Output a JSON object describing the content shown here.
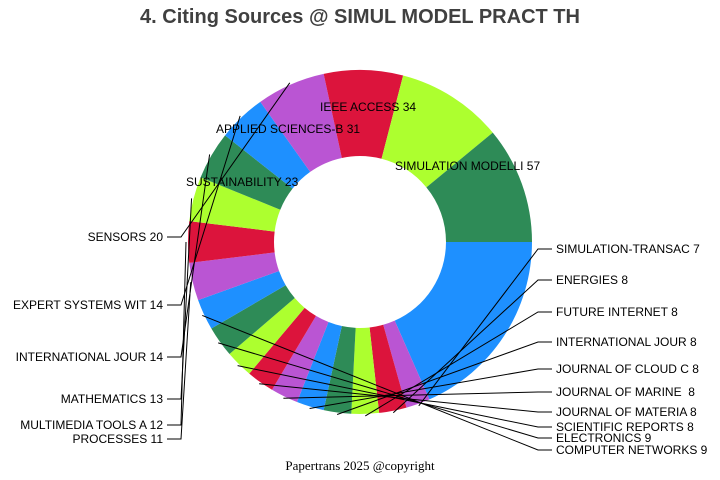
{
  "title": "4. Citing Sources @ SIMUL MODEL PRACT TH",
  "footer": "Papertrans 2025 @copyright",
  "chart_data": {
    "type": "pie",
    "title": "4. Citing Sources @ SIMUL MODEL PRACT TH",
    "donut": true,
    "labels": [
      "SIMULATION MODELLI 57",
      "SIMULATION-TRANSAC 7",
      "ENERGIES 8",
      "FUTURE INTERNET 8",
      "INTERNATIONAL JOUR 8",
      "JOURNAL OF CLOUD C 8",
      "JOURNAL OF MARINE  8",
      "JOURNAL OF MATERIA 8",
      "SCIENTIFIC REPORTS 8",
      "ELECTRONICS 9",
      "COMPUTER NETWORKS 9",
      "PROCESSES 11",
      "MULTIMEDIA TOOLS A 12",
      "MATHEMATICS 13",
      "INTERNATIONAL JOUR 14",
      "EXPERT SYSTEMS WIT 14",
      "SENSORS 20",
      "SUSTAINABILITY 23",
      "APPLIED SCIENCES-B 31",
      "IEEE ACCESS 34"
    ],
    "values": [
      57,
      7,
      8,
      8,
      8,
      8,
      8,
      8,
      8,
      9,
      9,
      11,
      12,
      13,
      14,
      14,
      20,
      23,
      31,
      34
    ],
    "colors": [
      "#1E90FF",
      "#BA55D3",
      "#DC143C",
      "#ADFF2F",
      "#2E8B57",
      "#1E90FF",
      "#BA55D3",
      "#DC143C",
      "#ADFF2F",
      "#2E8B57",
      "#1E90FF",
      "#BA55D3",
      "#DC143C",
      "#ADFF2F",
      "#2E8B57",
      "#1E90FF",
      "#BA55D3",
      "#DC143C",
      "#ADFF2F",
      "#2E8B57"
    ],
    "label_placement": [
      "inside",
      "outside",
      "outside",
      "outside",
      "outside",
      "outside",
      "outside",
      "outside",
      "outside",
      "outside",
      "outside",
      "outside",
      "outside",
      "outside",
      "outside",
      "outside",
      "outside",
      "inside",
      "inside",
      "inside"
    ],
    "start": "right",
    "direction": "clockwise"
  }
}
